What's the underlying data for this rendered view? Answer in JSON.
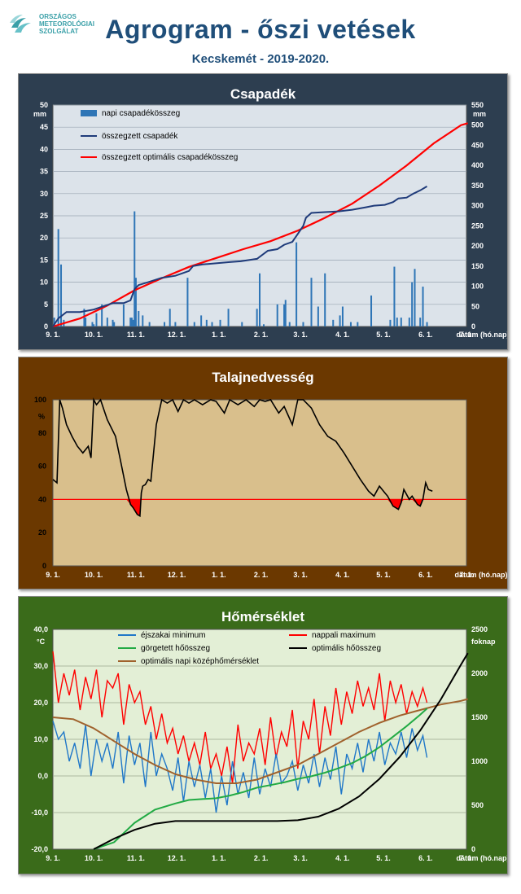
{
  "header": {
    "logo_lines": [
      "ORSZÁGOS",
      "METEOROLÓGIAI",
      "SZOLGÁLAT"
    ],
    "title": "Agrogram - őszi vetések",
    "subtitle": "Kecskemét - 2019-2020."
  },
  "colors": {
    "rain_bar": "#2e75b6",
    "cum_rain": "#1f3b7a",
    "opt_rain": "#ff0000",
    "soil_line": "#000000",
    "soil_threshold": "#ff0000",
    "tmin": "#1f77c8",
    "tmax": "#ff0000",
    "rolling_heat": "#22aa44",
    "opt_heat": "#000000",
    "opt_mean": "#a0622d",
    "panel1_bg": "#2d3e50",
    "panel2_bg": "#6b3800",
    "panel3_bg": "#3a6b1a",
    "plot1_bg": "#dce3ea",
    "plot2_bg": "#d9bf8c",
    "plot3_bg": "#e3efd6"
  },
  "chart_data": [
    {
      "type": "bar",
      "title": "Csapadék",
      "ylabel": "mm",
      "y2label": "mm",
      "xlabel": "dátum (hó.nap)",
      "ylim": [
        0,
        50
      ],
      "y2lim": [
        0,
        550
      ],
      "yticks": [
        0,
        5,
        10,
        15,
        20,
        25,
        30,
        35,
        40,
        45,
        50
      ],
      "y2ticks": [
        0,
        50,
        100,
        150,
        200,
        250,
        300,
        350,
        400,
        450,
        500,
        550
      ],
      "xlim": [
        0,
        304
      ],
      "xticks": [
        {
          "day": 0,
          "label": "9. 1."
        },
        {
          "day": 30,
          "label": "10. 1."
        },
        {
          "day": 61,
          "label": "11. 1."
        },
        {
          "day": 91,
          "label": "12. 1."
        },
        {
          "day": 122,
          "label": "1. 1."
        },
        {
          "day": 153,
          "label": "2. 1."
        },
        {
          "day": 182,
          "label": "3. 1."
        },
        {
          "day": 213,
          "label": "4. 1."
        },
        {
          "day": 243,
          "label": "5. 1."
        },
        {
          "day": 274,
          "label": "6. 1."
        },
        {
          "day": 304,
          "label": "7. 1."
        }
      ],
      "grid": true,
      "legend_position": "top-left",
      "series": [
        {
          "name": "napi csapadékösszeg",
          "kind": "bar",
          "axis": "left",
          "x": [
            1,
            4,
            6,
            8,
            23,
            24,
            29,
            30,
            32,
            36,
            40,
            44,
            45,
            52,
            57,
            58,
            59,
            60,
            61,
            63,
            66,
            71,
            82,
            86,
            90,
            99,
            104,
            109,
            113,
            117,
            123,
            129,
            139,
            150,
            152,
            155,
            165,
            170,
            171,
            174,
            179,
            184,
            190,
            195,
            200,
            206,
            211,
            213,
            219,
            224,
            234,
            248,
            251,
            253,
            256,
            262,
            264,
            266,
            270,
            272,
            275
          ],
          "values": [
            2,
            22,
            14,
            1.5,
            4,
            2,
            1,
            0.5,
            3,
            5,
            2,
            1.5,
            1,
            5,
            2,
            2,
            1.5,
            26,
            11,
            3.5,
            2.5,
            1,
            1,
            4,
            1,
            11,
            1,
            2.5,
            1.5,
            1,
            1.5,
            4,
            1,
            4,
            12,
            0.5,
            5,
            5,
            6,
            1,
            19,
            1,
            11,
            4.5,
            12,
            1.5,
            2.5,
            4.5,
            1,
            1,
            7,
            1.5,
            13.5,
            2,
            2,
            2,
            10,
            13,
            2,
            9,
            1
          ]
        },
        {
          "name": "összegzett csapadék",
          "kind": "line",
          "axis": "right",
          "x": [
            0,
            4,
            10,
            20,
            30,
            44,
            52,
            57,
            60,
            63,
            70,
            80,
            90,
            100,
            103,
            110,
            130,
            138,
            150,
            158,
            165,
            170,
            176,
            180,
            184,
            186,
            190,
            200,
            210,
            220,
            230,
            236,
            244,
            250,
            254,
            260,
            265,
            270,
            275
          ],
          "values": [
            0,
            20,
            36,
            36,
            42,
            58,
            58,
            65,
            93,
            103,
            110,
            121,
            126,
            138,
            150,
            154,
            160,
            162,
            168,
            188,
            192,
            203,
            210,
            230,
            250,
            270,
            282,
            284,
            286,
            290,
            296,
            300,
            302,
            309,
            318,
            320,
            330,
            338,
            348
          ]
        },
        {
          "name": "összegzett optimális csapadékösszeg",
          "kind": "line",
          "axis": "right",
          "x": [
            0,
            20,
            40,
            60,
            80,
            100,
            120,
            140,
            160,
            180,
            200,
            220,
            240,
            260,
            280,
            300,
            305
          ],
          "values": [
            0,
            20,
            52,
            90,
            120,
            148,
            170,
            192,
            212,
            238,
            270,
            305,
            350,
            400,
            455,
            500,
            505
          ]
        }
      ]
    },
    {
      "type": "line",
      "title": "Talajnedvesség",
      "ylabel": "%",
      "xlabel": "dátum (hó.nap)",
      "ylim": [
        0,
        100
      ],
      "yticks": [
        0,
        20,
        40,
        60,
        80,
        100
      ],
      "xlim": [
        0,
        304
      ],
      "xticks": [
        {
          "day": 0,
          "label": "9. 1."
        },
        {
          "day": 30,
          "label": "10. 1."
        },
        {
          "day": 61,
          "label": "11. 1."
        },
        {
          "day": 91,
          "label": "12. 1."
        },
        {
          "day": 122,
          "label": "1. 1."
        },
        {
          "day": 153,
          "label": "2. 1."
        },
        {
          "day": 182,
          "label": "3. 1."
        },
        {
          "day": 213,
          "label": "4. 1."
        },
        {
          "day": 243,
          "label": "5. 1."
        },
        {
          "day": 274,
          "label": "6. 1."
        },
        {
          "day": 304,
          "label": "7. 1."
        }
      ],
      "grid": false,
      "threshold": 40,
      "series": [
        {
          "name": "",
          "x": [
            0,
            3,
            5,
            7,
            10,
            14,
            18,
            22,
            26,
            28,
            30,
            32,
            35,
            40,
            46,
            50,
            54,
            57,
            59,
            62,
            64,
            65,
            66,
            68,
            70,
            72,
            76,
            80,
            84,
            88,
            92,
            96,
            100,
            104,
            110,
            116,
            120,
            126,
            130,
            136,
            142,
            148,
            152,
            156,
            160,
            166,
            170,
            176,
            180,
            184,
            190,
            196,
            202,
            208,
            214,
            220,
            226,
            232,
            236,
            240,
            244,
            246,
            250,
            254,
            256,
            258,
            262,
            264,
            268,
            270,
            272,
            274,
            276,
            279
          ],
          "values": [
            52,
            50,
            100,
            95,
            85,
            78,
            72,
            68,
            72,
            65,
            100,
            97,
            100,
            88,
            78,
            62,
            46,
            37,
            35,
            31,
            30,
            44,
            48,
            49,
            52,
            51,
            85,
            100,
            98,
            100,
            93,
            100,
            98,
            100,
            97,
            100,
            99,
            92,
            100,
            97,
            100,
            96,
            100,
            99,
            100,
            92,
            96,
            85,
            100,
            100,
            95,
            85,
            78,
            75,
            68,
            60,
            52,
            45,
            42,
            48,
            44,
            42,
            36,
            34,
            38,
            46,
            40,
            42,
            37,
            36,
            40,
            50,
            46,
            45
          ]
        }
      ]
    },
    {
      "type": "line",
      "title": "Hőmérséklet",
      "ylabel": "°C",
      "y2label": "foknap",
      "xlabel": "dátum (hó.nap)",
      "ylim": [
        -20,
        40
      ],
      "y2lim": [
        0,
        2500
      ],
      "yticks": [
        -20,
        -10,
        0,
        10,
        20,
        30,
        40
      ],
      "ytick_labels": [
        "-20,0",
        "-10,0",
        "0,0",
        "10,0",
        "20,0",
        "30,0",
        "40,0"
      ],
      "y2ticks": [
        0,
        500,
        1000,
        1500,
        2000,
        2500
      ],
      "xlim": [
        0,
        304
      ],
      "xticks": [
        {
          "day": 0,
          "label": "9. 1."
        },
        {
          "day": 30,
          "label": "10. 1."
        },
        {
          "day": 61,
          "label": "11. 1."
        },
        {
          "day": 91,
          "label": "12. 1."
        },
        {
          "day": 122,
          "label": "1. 1."
        },
        {
          "day": 153,
          "label": "2. 1."
        },
        {
          "day": 182,
          "label": "3. 1."
        },
        {
          "day": 213,
          "label": "4. 1."
        },
        {
          "day": 243,
          "label": "5. 1."
        },
        {
          "day": 274,
          "label": "6. 1."
        },
        {
          "day": 304,
          "label": "7. 1."
        }
      ],
      "grid": true,
      "legend_position": "top",
      "series": [
        {
          "name": "éjszakai minimum",
          "axis": "left",
          "x": [
            0,
            4,
            8,
            12,
            16,
            20,
            24,
            28,
            32,
            36,
            40,
            44,
            48,
            52,
            56,
            60,
            64,
            68,
            72,
            76,
            80,
            84,
            88,
            92,
            96,
            100,
            104,
            108,
            112,
            116,
            120,
            124,
            128,
            132,
            136,
            140,
            144,
            148,
            152,
            156,
            160,
            164,
            168,
            172,
            176,
            180,
            184,
            188,
            192,
            196,
            200,
            204,
            208,
            212,
            216,
            220,
            224,
            228,
            232,
            236,
            240,
            244,
            248,
            252,
            256,
            260,
            264,
            268,
            272,
            275
          ],
          "values": [
            15,
            10,
            12,
            4,
            9,
            2,
            14,
            0,
            10,
            4,
            9,
            2,
            12,
            -2,
            11,
            3,
            9,
            -3,
            12,
            0,
            6,
            2,
            -4,
            5,
            -7,
            4,
            -3,
            3,
            -6,
            2,
            -10,
            0,
            -8,
            4,
            -5,
            1,
            -6,
            5,
            -5,
            2,
            -3,
            6,
            -2,
            0,
            4,
            -4,
            3,
            -2,
            6,
            -3,
            5,
            -1,
            8,
            -5,
            6,
            2,
            9,
            1,
            10,
            4,
            12,
            3,
            9,
            6,
            12,
            5,
            13,
            7,
            11,
            5
          ]
        },
        {
          "name": "nappali maximum",
          "axis": "left",
          "x": [
            0,
            4,
            8,
            12,
            16,
            20,
            24,
            28,
            32,
            36,
            40,
            44,
            48,
            52,
            56,
            60,
            64,
            68,
            72,
            76,
            80,
            84,
            88,
            92,
            96,
            100,
            104,
            108,
            112,
            116,
            120,
            124,
            128,
            132,
            136,
            140,
            144,
            148,
            152,
            156,
            160,
            164,
            168,
            172,
            176,
            180,
            184,
            188,
            192,
            196,
            200,
            204,
            208,
            212,
            216,
            220,
            224,
            228,
            232,
            236,
            240,
            244,
            248,
            252,
            256,
            260,
            264,
            268,
            272,
            275
          ],
          "values": [
            34,
            20,
            28,
            22,
            29,
            18,
            27,
            21,
            29,
            16,
            26,
            24,
            28,
            14,
            25,
            20,
            23,
            14,
            19,
            10,
            17,
            9,
            13,
            6,
            11,
            4,
            9,
            3,
            12,
            2,
            6,
            0,
            8,
            -2,
            14,
            4,
            9,
            6,
            13,
            3,
            16,
            5,
            12,
            8,
            18,
            2,
            15,
            10,
            21,
            6,
            19,
            11,
            24,
            14,
            23,
            17,
            26,
            19,
            24,
            18,
            28,
            15,
            26,
            20,
            25,
            17,
            23,
            19,
            24,
            20
          ]
        },
        {
          "name": "görgetett hőösszeg",
          "axis": "right",
          "x": [
            30,
            45,
            60,
            75,
            90,
            100,
            110,
            120,
            130,
            140,
            150,
            160,
            170,
            180,
            190,
            200,
            210,
            220,
            230,
            240,
            250,
            260,
            270,
            275
          ],
          "values": [
            0,
            80,
            300,
            450,
            520,
            560,
            570,
            580,
            610,
            650,
            700,
            730,
            760,
            800,
            830,
            870,
            920,
            980,
            1060,
            1160,
            1280,
            1400,
            1530,
            1600
          ]
        },
        {
          "name": "optimális hőösszeg",
          "axis": "right",
          "x": [
            30,
            45,
            60,
            75,
            90,
            105,
            120,
            135,
            150,
            165,
            180,
            195,
            210,
            225,
            240,
            255,
            270,
            285,
            300,
            305
          ],
          "values": [
            0,
            120,
            220,
            290,
            320,
            320,
            320,
            320,
            320,
            320,
            330,
            370,
            460,
            600,
            800,
            1050,
            1350,
            1700,
            2100,
            2230
          ]
        },
        {
          "name": "optimális napi középhőmérséklet",
          "axis": "left",
          "x": [
            0,
            15,
            30,
            45,
            60,
            75,
            90,
            105,
            120,
            135,
            150,
            165,
            180,
            195,
            210,
            225,
            240,
            255,
            270,
            285,
            300,
            305
          ],
          "values": [
            16,
            15.5,
            13,
            9.5,
            6,
            3,
            0.5,
            -1,
            -2,
            -2,
            -1,
            1,
            3,
            6,
            9,
            12,
            14.5,
            16.5,
            18,
            19.5,
            20.5,
            21
          ]
        }
      ]
    }
  ]
}
